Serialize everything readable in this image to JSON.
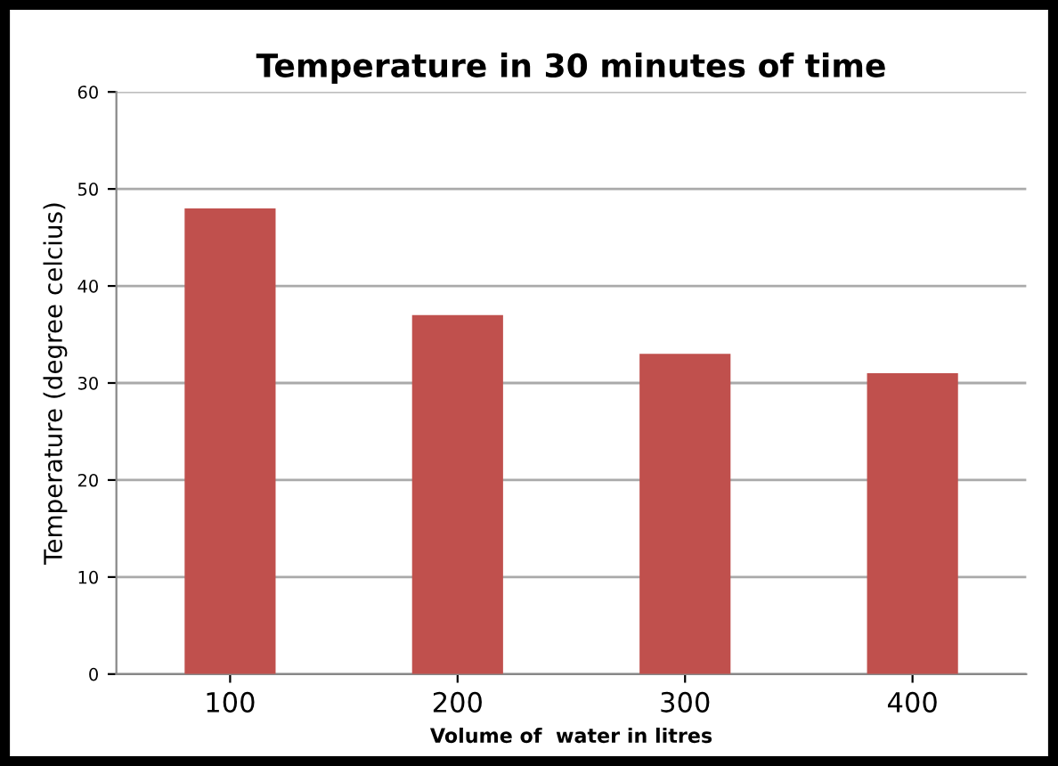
{
  "chart_data": {
    "type": "bar",
    "title": "Temperature in 30 minutes of time",
    "xlabel": "Volume of  water in litres",
    "ylabel": "Temperature (degree celcius)",
    "categories": [
      "100",
      "200",
      "300",
      "400"
    ],
    "values": [
      48,
      37,
      33,
      31
    ],
    "color": "#c0504d",
    "ylim": [
      0,
      60
    ],
    "yticks": [
      0,
      10,
      20,
      30,
      40,
      50,
      60
    ],
    "grid": "y"
  }
}
